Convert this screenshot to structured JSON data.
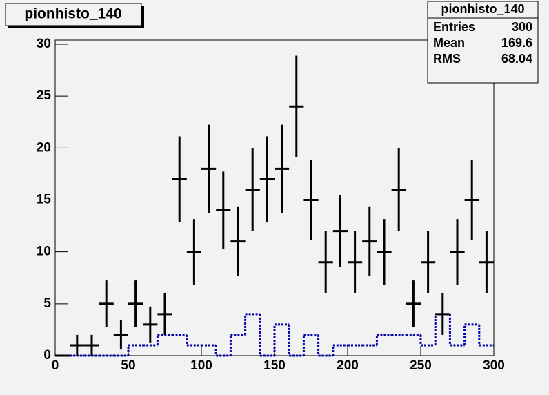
{
  "chart_data": {
    "type": "histogram",
    "title": "pionhisto_140",
    "bins": [
      0,
      10,
      20,
      30,
      40,
      50,
      60,
      70,
      80,
      90,
      100,
      110,
      120,
      130,
      140,
      150,
      160,
      170,
      180,
      190,
      200,
      210,
      220,
      230,
      240,
      250,
      260,
      270,
      280,
      290,
      300
    ],
    "data": {
      "color": "#000000",
      "values": [
        0,
        1,
        1,
        5,
        2,
        5,
        3,
        4,
        17,
        10,
        18,
        14,
        11,
        16,
        17,
        18,
        24,
        15,
        9,
        12,
        9,
        11,
        10,
        16,
        5,
        9,
        4,
        10,
        15,
        9
      ],
      "errors": [
        0,
        1,
        1,
        2.24,
        1.41,
        2.24,
        1.73,
        2,
        4.12,
        3.16,
        4.24,
        3.74,
        3.32,
        4,
        4.12,
        4.24,
        4.9,
        3.87,
        3,
        3.46,
        3,
        3.32,
        3.16,
        4,
        2.24,
        3,
        2,
        3.16,
        3.87,
        3
      ]
    },
    "reference": {
      "color": "#0000aa",
      "values": [
        0,
        0,
        0,
        0,
        0,
        1,
        1,
        2,
        2,
        1,
        1,
        0,
        2,
        4,
        0,
        3,
        0,
        2,
        0,
        1,
        1,
        1,
        2,
        2,
        2,
        1,
        4,
        1,
        3,
        1
      ]
    },
    "xlim": [
      0,
      300
    ],
    "xticks": [
      0,
      50,
      100,
      150,
      200,
      250,
      300
    ],
    "ylim": [
      0,
      30.4
    ],
    "yticks": [
      0,
      5,
      10,
      15,
      20,
      25,
      30
    ]
  },
  "stats_box": {
    "title": "pionhisto_140",
    "rows": [
      {
        "label": "Entries",
        "value": 300
      },
      {
        "label": "Mean",
        "value": 169.6
      },
      {
        "label": "RMS",
        "value": 68.04
      }
    ]
  }
}
